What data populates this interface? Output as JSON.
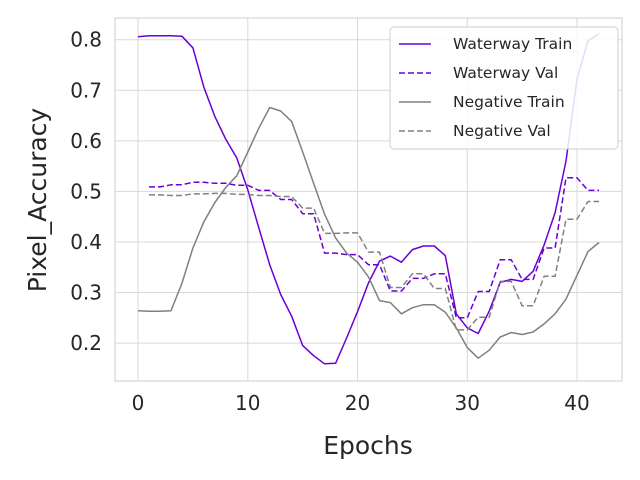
{
  "chart_data": {
    "type": "line",
    "xlabel": "Epochs",
    "ylabel": "Pixel_Accuracy",
    "xlim": [
      -2.1,
      44.1
    ],
    "ylim": [
      0.125,
      0.843
    ],
    "xticks": [
      0,
      10,
      20,
      30,
      40
    ],
    "yticks": [
      0.2,
      0.3,
      0.4,
      0.5,
      0.6,
      0.7,
      0.8
    ],
    "xtick_labels": [
      "0",
      "10",
      "20",
      "30",
      "40"
    ],
    "ytick_labels": [
      "0.2",
      "0.3",
      "0.4",
      "0.5",
      "0.6",
      "0.7",
      "0.8"
    ],
    "grid": true,
    "legend_position": "top-right",
    "series": [
      {
        "name": "Waterway Train",
        "color": "#6a00d6",
        "dash": "solid",
        "x": [
          0,
          1,
          2,
          3,
          4,
          5,
          6,
          7,
          8,
          9,
          10,
          11,
          12,
          13,
          14,
          15,
          16,
          17,
          18,
          19,
          20,
          21,
          22,
          23,
          24,
          25,
          26,
          27,
          28,
          29,
          30,
          31,
          32,
          33,
          34,
          35,
          36,
          37,
          38,
          39,
          40,
          41,
          42
        ],
        "y": [
          0.806,
          0.808,
          0.808,
          0.808,
          0.807,
          0.784,
          0.706,
          0.648,
          0.603,
          0.566,
          0.503,
          0.428,
          0.355,
          0.296,
          0.253,
          0.195,
          0.175,
          0.159,
          0.16,
          0.21,
          0.262,
          0.319,
          0.362,
          0.372,
          0.36,
          0.385,
          0.392,
          0.392,
          0.373,
          0.258,
          0.23,
          0.219,
          0.263,
          0.32,
          0.326,
          0.322,
          0.342,
          0.394,
          0.458,
          0.56,
          0.722,
          0.798,
          0.812
        ]
      },
      {
        "name": "Waterway Val",
        "color": "#6a00d6",
        "dash": "dashed",
        "x": [
          1,
          2,
          3,
          4,
          5,
          6,
          7,
          8,
          9,
          10,
          11,
          12,
          13,
          14,
          15,
          16,
          17,
          18,
          19,
          20,
          21,
          22,
          23,
          24,
          25,
          26,
          27,
          28,
          29,
          30,
          31,
          32,
          33,
          34,
          35,
          36,
          37,
          38,
          39,
          40,
          41,
          42
        ],
        "y": [
          0.509,
          0.509,
          0.513,
          0.513,
          0.518,
          0.518,
          0.516,
          0.516,
          0.512,
          0.512,
          0.502,
          0.502,
          0.484,
          0.484,
          0.456,
          0.456,
          0.378,
          0.378,
          0.375,
          0.375,
          0.355,
          0.355,
          0.303,
          0.303,
          0.328,
          0.328,
          0.337,
          0.337,
          0.25,
          0.25,
          0.302,
          0.302,
          0.365,
          0.365,
          0.326,
          0.326,
          0.388,
          0.388,
          0.527,
          0.527,
          0.502,
          0.502
        ]
      },
      {
        "name": "Negative Train",
        "color": "#808080",
        "dash": "solid",
        "x": [
          0,
          1,
          2,
          3,
          4,
          5,
          6,
          7,
          8,
          9,
          10,
          11,
          12,
          13,
          14,
          15,
          16,
          17,
          18,
          19,
          20,
          21,
          22,
          23,
          24,
          25,
          26,
          27,
          28,
          29,
          30,
          31,
          32,
          33,
          34,
          35,
          36,
          37,
          38,
          39,
          40,
          41,
          42
        ],
        "y": [
          0.264,
          0.263,
          0.263,
          0.264,
          0.318,
          0.388,
          0.44,
          0.478,
          0.508,
          0.531,
          0.578,
          0.625,
          0.666,
          0.659,
          0.638,
          0.578,
          0.516,
          0.455,
          0.408,
          0.378,
          0.36,
          0.331,
          0.284,
          0.28,
          0.258,
          0.27,
          0.276,
          0.276,
          0.261,
          0.23,
          0.191,
          0.17,
          0.186,
          0.212,
          0.221,
          0.217,
          0.222,
          0.238,
          0.258,
          0.287,
          0.334,
          0.381,
          0.399
        ]
      },
      {
        "name": "Negative Val",
        "color": "#808080",
        "dash": "dashed",
        "x": [
          1,
          2,
          3,
          4,
          5,
          6,
          7,
          8,
          9,
          10,
          11,
          12,
          13,
          14,
          15,
          16,
          17,
          18,
          19,
          20,
          21,
          22,
          23,
          24,
          25,
          26,
          27,
          28,
          29,
          30,
          31,
          32,
          33,
          34,
          35,
          36,
          37,
          38,
          39,
          40,
          41,
          42
        ],
        "y": [
          0.493,
          0.493,
          0.492,
          0.492,
          0.495,
          0.495,
          0.496,
          0.496,
          0.494,
          0.494,
          0.492,
          0.492,
          0.49,
          0.49,
          0.467,
          0.467,
          0.417,
          0.417,
          0.418,
          0.418,
          0.38,
          0.38,
          0.31,
          0.31,
          0.337,
          0.337,
          0.308,
          0.308,
          0.226,
          0.226,
          0.251,
          0.251,
          0.322,
          0.322,
          0.274,
          0.274,
          0.332,
          0.332,
          0.445,
          0.445,
          0.48,
          0.48
        ]
      }
    ]
  }
}
